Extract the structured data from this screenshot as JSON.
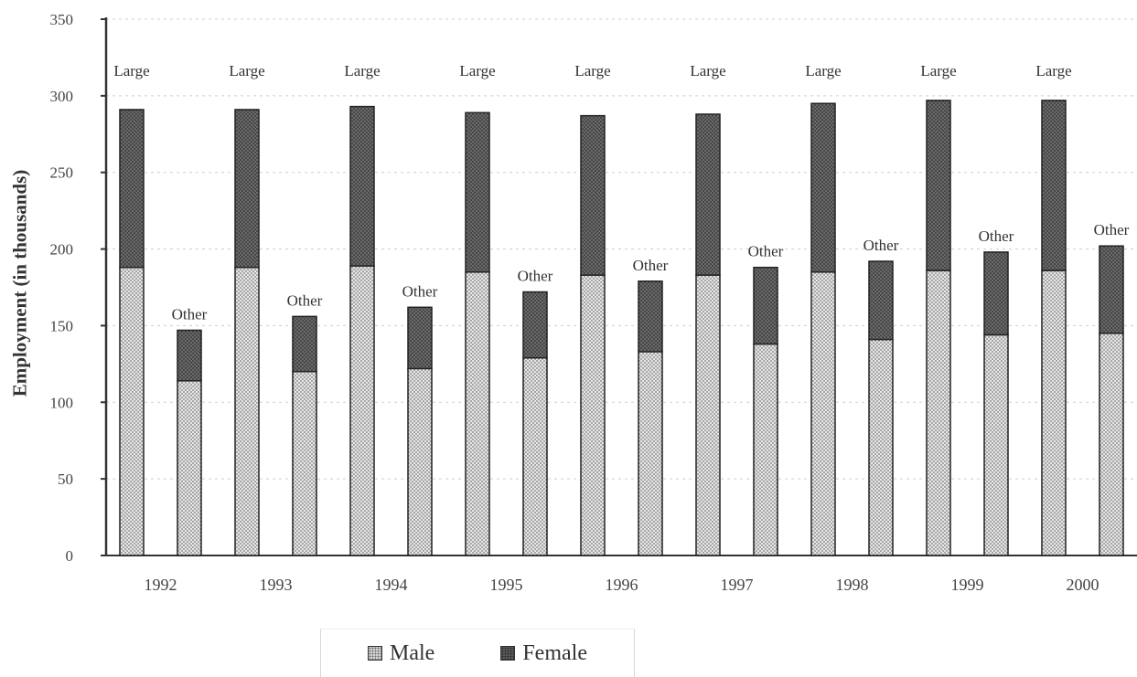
{
  "chart_data": {
    "type": "bar",
    "stacked": true,
    "ylabel": "Employment (in thousands)",
    "xlabel": "",
    "ylim": [
      0,
      350
    ],
    "yticks": [
      0,
      50,
      100,
      150,
      200,
      250,
      300,
      350
    ],
    "grid": true,
    "legend_placement": "bottom",
    "categories": [
      "1992",
      "1993",
      "1994",
      "1995",
      "1996",
      "1997",
      "1998",
      "1999",
      "2000"
    ],
    "groups": [
      "Large",
      "Other"
    ],
    "series": [
      {
        "name": "Male",
        "color": "#d8d8d8"
      },
      {
        "name": "Female",
        "color": "#5a5a5a"
      }
    ],
    "data": {
      "Large": {
        "Male": [
          188,
          188,
          189,
          185,
          183,
          183,
          185,
          186,
          186
        ],
        "Female": [
          103,
          103,
          104,
          104,
          104,
          105,
          110,
          111,
          111
        ]
      },
      "Other": {
        "Male": [
          114,
          120,
          122,
          129,
          133,
          138,
          141,
          144,
          145
        ],
        "Female": [
          33,
          36,
          40,
          43,
          46,
          50,
          51,
          54,
          57
        ]
      }
    },
    "bar_labels": {
      "Large": "Large",
      "Other": "Other"
    }
  },
  "legend": {
    "male_label": "Male",
    "female_label": "Female"
  }
}
